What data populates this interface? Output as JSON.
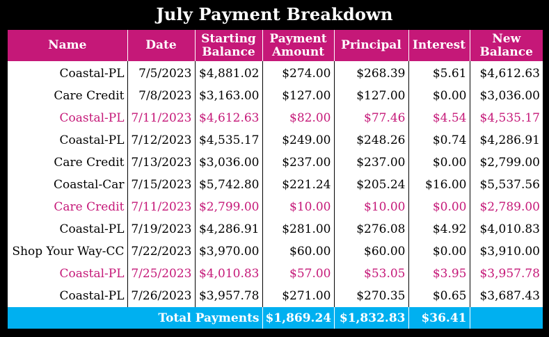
{
  "title": "July Payment Breakdown",
  "headers": {
    "name": "Name",
    "date": "Date",
    "starting_balance_1": "Starting",
    "starting_balance_2": "Balance",
    "payment_amount_1": "Payment",
    "payment_amount_2": "Amount",
    "principal": "Principal",
    "interest": "Interest",
    "new_balance_1": "New",
    "new_balance_2": "Balance"
  },
  "rows": [
    {
      "name": "Coastal-PL",
      "date": "7/5/2023",
      "starting": "$4,881.02",
      "payment": "$274.00",
      "principal": "$268.39",
      "interest": "$5.61",
      "new": "$4,612.63"
    },
    {
      "name": "Care Credit",
      "date": "7/8/2023",
      "starting": "$3,163.00",
      "payment": "$127.00",
      "principal": "$127.00",
      "interest": "$0.00",
      "new": "$3,036.00"
    },
    {
      "name": "Coastal-PL",
      "date": "7/11/2023",
      "starting": "$4,612.63",
      "payment": "$82.00",
      "principal": "$77.46",
      "interest": "$4.54",
      "new": "$4,535.17"
    },
    {
      "name": "Coastal-PL",
      "date": "7/12/2023",
      "starting": "$4,535.17",
      "payment": "$249.00",
      "principal": "$248.26",
      "interest": "$0.74",
      "new": "$4,286.91"
    },
    {
      "name": "Care Credit",
      "date": "7/13/2023",
      "starting": "$3,036.00",
      "payment": "$237.00",
      "principal": "$237.00",
      "interest": "$0.00",
      "new": "$2,799.00"
    },
    {
      "name": "Coastal-Car",
      "date": "7/15/2023",
      "starting": "$5,742.80",
      "payment": "$221.24",
      "principal": "$205.24",
      "interest": "$16.00",
      "new": "$5,537.56"
    },
    {
      "name": "Care Credit",
      "date": "7/11/2023",
      "starting": "$2,799.00",
      "payment": "$10.00",
      "principal": "$10.00",
      "interest": "$0.00",
      "new": "$2,789.00"
    },
    {
      "name": "Coastal-PL",
      "date": "7/19/2023",
      "starting": "$4,286.91",
      "payment": "$281.00",
      "principal": "$276.08",
      "interest": "$4.92",
      "new": "$4,010.83"
    },
    {
      "name": "Shop Your Way-CC",
      "date": "7/22/2023",
      "starting": "$3,970.00",
      "payment": "$60.00",
      "principal": "$60.00",
      "interest": "$0.00",
      "new": "$3,910.00"
    },
    {
      "name": "Coastal-PL",
      "date": "7/25/2023",
      "starting": "$4,010.83",
      "payment": "$57.00",
      "principal": "$53.05",
      "interest": "$3.95",
      "new": "$3,957.78"
    },
    {
      "name": "Coastal-PL",
      "date": "7/26/2023",
      "starting": "$3,957.78",
      "payment": "$271.00",
      "principal": "$270.35",
      "interest": "$0.65",
      "new": "$3,687.43"
    }
  ],
  "totals": {
    "label": "Total Payments",
    "payment": "$1,869.24",
    "principal": "$1,832.83",
    "interest": "$36.41"
  },
  "colors": {
    "header_bg": "#c51878",
    "highlight_text": "#c51878",
    "footer_bg": "#00b0f0",
    "background": "#000000"
  }
}
